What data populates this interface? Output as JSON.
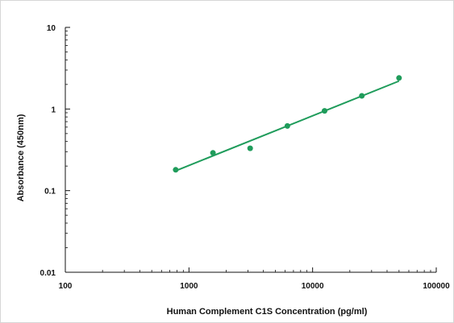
{
  "chart_data": {
    "type": "scatter",
    "title": "",
    "xlabel": "Human Complement C1S Concentration (pg/ml)",
    "ylabel": "Absorbance (450nm)",
    "x_scale": "log",
    "y_scale": "log",
    "xlim": [
      100,
      100000
    ],
    "ylim": [
      0.01,
      10
    ],
    "x_ticks": [
      "100",
      "1000",
      "10000",
      "100000"
    ],
    "y_ticks": [
      "0.01",
      "0.1",
      "1",
      "10"
    ],
    "grid": false,
    "legend": "none",
    "series": [
      {
        "points": [
          {
            "x": 781,
            "y": 0.18
          },
          {
            "x": 1563,
            "y": 0.29
          },
          {
            "x": 3125,
            "y": 0.33
          },
          {
            "x": 6250,
            "y": 0.62
          },
          {
            "x": 12500,
            "y": 0.95
          },
          {
            "x": 25000,
            "y": 1.45
          },
          {
            "x": 50000,
            "y": 2.4
          }
        ],
        "trendline": {
          "from": {
            "x": 781,
            "y": 0.175
          },
          "to": {
            "x": 50000,
            "y": 2.2
          }
        }
      }
    ],
    "colors": {
      "series": "#1f9c5b",
      "axis": "#111111"
    }
  }
}
